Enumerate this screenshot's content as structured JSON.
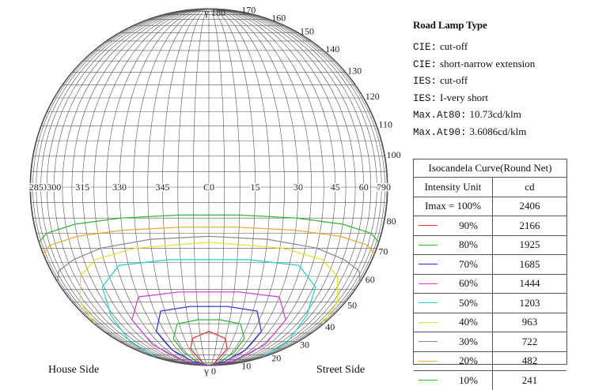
{
  "chart_data": {
    "type": "line",
    "projection": "isocandela round net",
    "top_pole_label": "180",
    "bottom_pole_label": "0",
    "top_marker": "γ",
    "bottom_marker": "γ",
    "horizontal_ticks": [
      "270",
      "285",
      "300",
      "315",
      "330",
      "345",
      "C0",
      "15",
      "30",
      "45",
      "60",
      "75",
      "90"
    ],
    "top_gamma_labels": [
      "170",
      "160",
      "150",
      "140",
      "130",
      "120",
      "110",
      "100"
    ],
    "bottom_gamma_labels": [
      "80",
      "70",
      "60",
      "50",
      "40",
      "30",
      "20",
      "10"
    ],
    "left_side_label": "House Side",
    "right_side_label": "Street Side",
    "series": [
      {
        "name": "90%",
        "color": "#e8322f",
        "level": 90,
        "points": [
          [
            -8,
            3
          ],
          [
            -12,
            10
          ],
          [
            -12,
            18
          ],
          [
            -14,
            25
          ],
          [
            -10,
            32
          ],
          [
            0,
            36
          ],
          [
            10,
            32
          ],
          [
            14,
            25
          ],
          [
            12,
            18
          ],
          [
            12,
            10
          ],
          [
            8,
            3
          ]
        ]
      },
      {
        "name": "80%",
        "color": "#2db82d",
        "level": 80,
        "points": [
          [
            -10,
            3
          ],
          [
            -18,
            12
          ],
          [
            -22,
            22
          ],
          [
            -22,
            32
          ],
          [
            -16,
            40
          ],
          [
            -5,
            42
          ],
          [
            5,
            42
          ],
          [
            16,
            40
          ],
          [
            22,
            32
          ],
          [
            22,
            22
          ],
          [
            18,
            12
          ],
          [
            10,
            3
          ]
        ]
      },
      {
        "name": "70%",
        "color": "#2a2ad0",
        "level": 70,
        "points": [
          [
            -14,
            3
          ],
          [
            -25,
            12
          ],
          [
            -30,
            24
          ],
          [
            -30,
            36
          ],
          [
            -22,
            46
          ],
          [
            -8,
            48
          ],
          [
            8,
            48
          ],
          [
            22,
            46
          ],
          [
            30,
            36
          ],
          [
            30,
            24
          ],
          [
            25,
            12
          ],
          [
            14,
            3
          ]
        ]
      },
      {
        "name": "60%",
        "color": "#d63ad6",
        "level": 60,
        "points": [
          [
            -22,
            3
          ],
          [
            -38,
            14
          ],
          [
            -42,
            28
          ],
          [
            -40,
            42
          ],
          [
            -30,
            52
          ],
          [
            -12,
            54
          ],
          [
            12,
            54
          ],
          [
            30,
            52
          ],
          [
            40,
            42
          ],
          [
            42,
            28
          ],
          [
            38,
            14
          ],
          [
            22,
            3
          ]
        ]
      },
      {
        "name": "50%",
        "color": "#22d0d0",
        "level": 50,
        "points": [
          [
            -78,
            18
          ],
          [
            -62,
            30
          ],
          [
            -52,
            44
          ],
          [
            -46,
            56
          ],
          [
            -34,
            64
          ],
          [
            -14,
            66
          ],
          [
            14,
            66
          ],
          [
            34,
            64
          ],
          [
            46,
            56
          ],
          [
            52,
            44
          ],
          [
            62,
            30
          ],
          [
            78,
            18
          ]
        ]
      },
      {
        "name": "40%",
        "color": "#e3e32a",
        "level": 40,
        "points": [
          [
            -82,
            40
          ],
          [
            -70,
            50
          ],
          [
            -56,
            60
          ],
          [
            -44,
            66
          ],
          [
            -26,
            70
          ],
          [
            0,
            72
          ],
          [
            26,
            70
          ],
          [
            44,
            66
          ],
          [
            56,
            60
          ],
          [
            70,
            50
          ],
          [
            82,
            40
          ]
        ]
      },
      {
        "name": "30%",
        "color": "#888888",
        "level": 30,
        "points": [
          [
            -86,
            58
          ],
          [
            -72,
            62
          ],
          [
            -56,
            66
          ],
          [
            -40,
            70
          ],
          [
            -20,
            73
          ],
          [
            0,
            74
          ],
          [
            20,
            73
          ],
          [
            40,
            70
          ],
          [
            56,
            66
          ],
          [
            72,
            62
          ],
          [
            86,
            58
          ]
        ]
      },
      {
        "name": "20%",
        "color": "#f5a21f",
        "level": 20,
        "points": [
          [
            -88,
            68
          ],
          [
            -70,
            71
          ],
          [
            -50,
            74
          ],
          [
            -30,
            76
          ],
          [
            -10,
            77
          ],
          [
            10,
            77
          ],
          [
            30,
            76
          ],
          [
            50,
            74
          ],
          [
            70,
            71
          ],
          [
            88,
            68
          ]
        ]
      },
      {
        "name": "10%",
        "color": "#2db82d",
        "level": 10,
        "points": [
          [
            -88,
            72
          ],
          [
            -70,
            75
          ],
          [
            -50,
            78
          ],
          [
            -30,
            80
          ],
          [
            -10,
            81
          ],
          [
            10,
            81
          ],
          [
            30,
            80
          ],
          [
            50,
            78
          ],
          [
            70,
            75
          ],
          [
            88,
            72
          ]
        ]
      }
    ]
  },
  "info": {
    "title": "Road Lamp Type",
    "rows": [
      {
        "key": "CIE:",
        "value": "cut-off"
      },
      {
        "key": "CIE:",
        "value": "short-narrow extension"
      },
      {
        "key": "IES:",
        "value": "cut-off"
      },
      {
        "key": "IES:",
        "value": "I-very short"
      },
      {
        "key": "Max.At80:",
        "value": "10.73cd/klm"
      },
      {
        "key": "Max.At90:",
        "value": "3.6086cd/klm"
      }
    ]
  },
  "legend": {
    "title": "Isocandela Curve(Round Net)",
    "col1_header": "Intensity Unit",
    "col2_header": "cd",
    "imax_label": "Imax = 100%",
    "imax_cd": "2406",
    "rows": [
      {
        "pct": "90%",
        "cd": "2166",
        "color": "#e8322f"
      },
      {
        "pct": "80%",
        "cd": "1925",
        "color": "#2db82d"
      },
      {
        "pct": "70%",
        "cd": "1685",
        "color": "#2a2ad0"
      },
      {
        "pct": "60%",
        "cd": "1444",
        "color": "#d63ad6"
      },
      {
        "pct": "50%",
        "cd": "1203",
        "color": "#22d0d0"
      },
      {
        "pct": "40%",
        "cd": "963",
        "color": "#e3e32a"
      },
      {
        "pct": "30%",
        "cd": "722",
        "color": "#888888"
      },
      {
        "pct": "20%",
        "cd": "482",
        "color": "#f5a21f"
      },
      {
        "pct": "10%",
        "cd": "241",
        "color": "#2db82d"
      }
    ]
  }
}
